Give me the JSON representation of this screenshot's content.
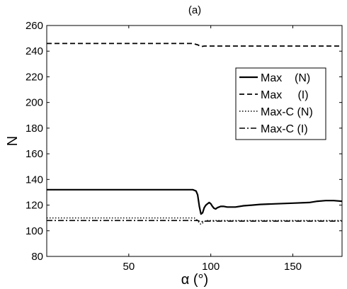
{
  "chart_data": {
    "type": "line",
    "title": "(a)",
    "xlabel": "α (°)",
    "ylabel": "N",
    "xlim": [
      0,
      180
    ],
    "ylim": [
      80,
      260
    ],
    "xticks": [
      50,
      100,
      150
    ],
    "yticks": [
      80,
      100,
      120,
      140,
      160,
      180,
      200,
      220,
      240,
      260
    ],
    "grid": false,
    "legend_position": "top-right",
    "series": [
      {
        "name": "Max    (N)",
        "style": "solid",
        "color": "#000000",
        "x": [
          0,
          50,
          89,
          91,
          92,
          93,
          94,
          95,
          96,
          97,
          98,
          99,
          100,
          101,
          102,
          103,
          104,
          105,
          106,
          108,
          110,
          115,
          120,
          125,
          130,
          140,
          150,
          160,
          165,
          170,
          175,
          180
        ],
        "y": [
          132,
          132,
          132,
          131,
          128,
          119,
          113,
          114,
          118,
          120,
          121,
          122,
          121,
          119,
          117.5,
          117,
          118,
          118.5,
          119,
          119,
          118.5,
          118.5,
          119.5,
          120,
          120.5,
          121,
          121.5,
          122,
          123,
          123.5,
          123.5,
          123
        ]
      },
      {
        "name": "Max     (I)",
        "style": "dashed",
        "color": "#000000",
        "x": [
          0,
          89,
          92,
          94,
          96,
          100,
          110,
          120,
          140,
          160,
          180
        ],
        "y": [
          246,
          246,
          245,
          243.5,
          244,
          244,
          244,
          244,
          244,
          244,
          244
        ]
      },
      {
        "name": "Max-C (N)",
        "style": "dotted",
        "color": "#000000",
        "x": [
          0,
          50,
          90,
          92,
          93,
          94,
          95,
          96,
          97,
          100,
          120,
          150,
          180
        ],
        "y": [
          110,
          110,
          110,
          108,
          106,
          105,
          106,
          107,
          108,
          108,
          108,
          108,
          108
        ]
      },
      {
        "name": "Max-C (I)",
        "style": "dashdot",
        "color": "#000000",
        "x": [
          0,
          50,
          92,
          94,
          96,
          100,
          120,
          150,
          180
        ],
        "y": [
          108,
          108,
          108,
          107,
          107.5,
          107.5,
          107.5,
          107.5,
          107.5
        ]
      }
    ]
  }
}
